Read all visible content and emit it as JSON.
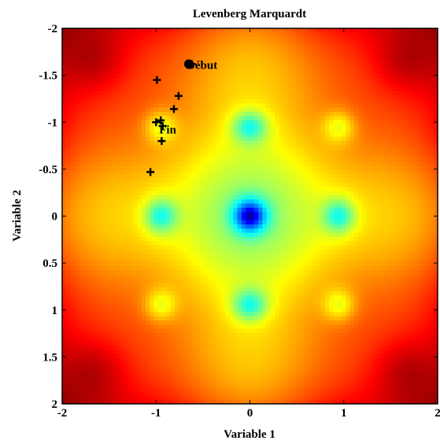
{
  "chart_data": {
    "type": "heatmap",
    "title": "Levenberg Marquardt",
    "xlabel": "Variable 1",
    "ylabel": "Variable 2",
    "xlim": [
      -2,
      2
    ],
    "ylim": [
      -2,
      2
    ],
    "y_axis_direction": "reversed (top = -2, bottom = 2)",
    "x_ticks": [
      -2,
      -1,
      0,
      1,
      2
    ],
    "x_tick_labels": [
      "-2",
      "-1",
      "0",
      "1",
      "2"
    ],
    "y_ticks": [
      -2,
      -1.5,
      -1,
      -0.5,
      0,
      0.5,
      1,
      1.5,
      2
    ],
    "y_tick_labels": [
      "-2",
      "-1.5",
      "-1",
      "-0.5",
      "0",
      "0.5",
      "1",
      "1.5",
      "2"
    ],
    "grid": false,
    "colormap": "jet (blue = low, dark red = high)",
    "surface": {
      "global_minimum": [
        0,
        0
      ],
      "local_minima": [
        [
          -0.95,
          -0.95
        ],
        [
          0,
          -0.95
        ],
        [
          0.95,
          -0.95
        ],
        [
          -0.95,
          0
        ],
        [
          0.95,
          0
        ],
        [
          -0.95,
          0.95
        ],
        [
          0,
          0.95
        ],
        [
          0.95,
          0.95
        ]
      ],
      "maxima_regions": [
        [
          -1.65,
          -1.65
        ],
        [
          1.65,
          -1.65
        ],
        [
          -1.65,
          1.65
        ],
        [
          1.65,
          1.65
        ]
      ]
    },
    "path": {
      "marker": "plus",
      "color": "#000000",
      "points": [
        {
          "x": -0.62,
          "y": -1.62
        },
        {
          "x": -0.99,
          "y": -1.45
        },
        {
          "x": -0.76,
          "y": -1.28
        },
        {
          "x": -0.81,
          "y": -1.14
        },
        {
          "x": -0.95,
          "y": -1.02
        },
        {
          "x": -1.0,
          "y": -1.0
        },
        {
          "x": -0.93,
          "y": -0.96
        },
        {
          "x": -0.94,
          "y": -0.8
        },
        {
          "x": -1.06,
          "y": -0.47
        }
      ]
    },
    "start_point": {
      "x": -0.65,
      "y": -1.62,
      "label": "Début"
    },
    "end_label": {
      "x": -0.95,
      "y": -0.99,
      "label": "Fin"
    }
  },
  "colors": {
    "marker": "#000000",
    "background": "#ffffff"
  }
}
